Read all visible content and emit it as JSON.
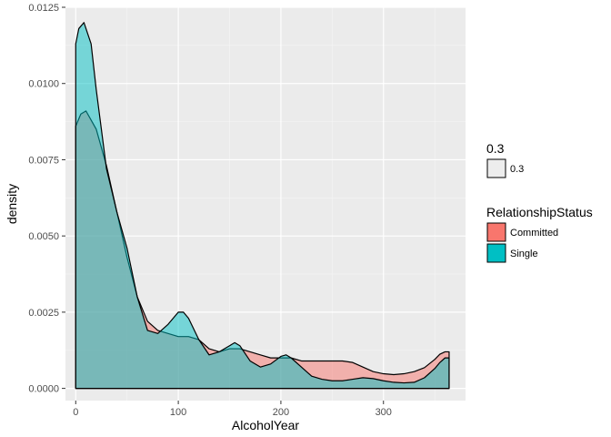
{
  "chart_data": {
    "type": "area",
    "xlabel": "AlcoholYear",
    "ylabel": "density",
    "xlim": [
      -10,
      380
    ],
    "ylim": [
      -0.0004,
      0.0125
    ],
    "x_ticks": [
      0,
      100,
      200,
      300
    ],
    "x_tick_labels": [
      "0",
      "100",
      "200",
      "300"
    ],
    "y_ticks": [
      0,
      0.0025,
      0.005,
      0.0075,
      0.01,
      0.0125
    ],
    "y_tick_labels": [
      "0.0000",
      "0.0025",
      "0.0050",
      "0.0075",
      "0.0100",
      "0.0125"
    ],
    "grid": true,
    "legend_position": "right",
    "legends": [
      {
        "title": "0.3",
        "entries": [
          {
            "label": "0.3",
            "color": "#ededed"
          }
        ]
      },
      {
        "title": "RelationshipStatus",
        "entries": [
          {
            "label": "Committed",
            "color": "#f8766d"
          },
          {
            "label": "Single",
            "color": "#00bfc4"
          }
        ]
      }
    ],
    "series": [
      {
        "name": "Committed",
        "color": "#f8766d",
        "x": [
          0,
          5,
          10,
          20,
          30,
          40,
          50,
          60,
          70,
          80,
          90,
          100,
          110,
          120,
          130,
          140,
          150,
          160,
          170,
          180,
          190,
          200,
          210,
          220,
          230,
          240,
          250,
          260,
          270,
          280,
          290,
          300,
          310,
          320,
          330,
          340,
          350,
          355,
          360,
          364
        ],
        "y": [
          0.0086,
          0.009,
          0.0091,
          0.0085,
          0.0073,
          0.0058,
          0.0043,
          0.003,
          0.0022,
          0.0019,
          0.0018,
          0.0017,
          0.0017,
          0.0016,
          0.0013,
          0.0012,
          0.0013,
          0.0013,
          0.0012,
          0.0011,
          0.001,
          0.001,
          0.001,
          0.0009,
          0.0009,
          0.0009,
          0.0009,
          0.0009,
          0.00085,
          0.0007,
          0.00055,
          0.00048,
          0.00045,
          0.00048,
          0.00055,
          0.00068,
          0.00095,
          0.00112,
          0.0012,
          0.0012
        ]
      },
      {
        "name": "Single",
        "color": "#00bfc4",
        "x": [
          0,
          3,
          8,
          15,
          20,
          30,
          40,
          50,
          60,
          70,
          80,
          90,
          100,
          105,
          110,
          120,
          130,
          140,
          150,
          155,
          160,
          170,
          180,
          190,
          200,
          205,
          210,
          220,
          230,
          240,
          250,
          260,
          270,
          280,
          290,
          300,
          310,
          320,
          330,
          340,
          350,
          355,
          360,
          364
        ],
        "y": [
          0.0113,
          0.0118,
          0.012,
          0.0113,
          0.0098,
          0.0072,
          0.0058,
          0.0046,
          0.003,
          0.0019,
          0.0018,
          0.0021,
          0.0025,
          0.0025,
          0.0023,
          0.0016,
          0.0011,
          0.0012,
          0.0014,
          0.0015,
          0.0014,
          0.0009,
          0.0007,
          0.0008,
          0.00105,
          0.0011,
          0.001,
          0.0007,
          0.0004,
          0.0003,
          0.00025,
          0.00025,
          0.0003,
          0.00035,
          0.00032,
          0.00025,
          0.0002,
          0.00018,
          0.0002,
          0.00035,
          0.00065,
          0.00085,
          0.001,
          0.001
        ]
      }
    ]
  }
}
